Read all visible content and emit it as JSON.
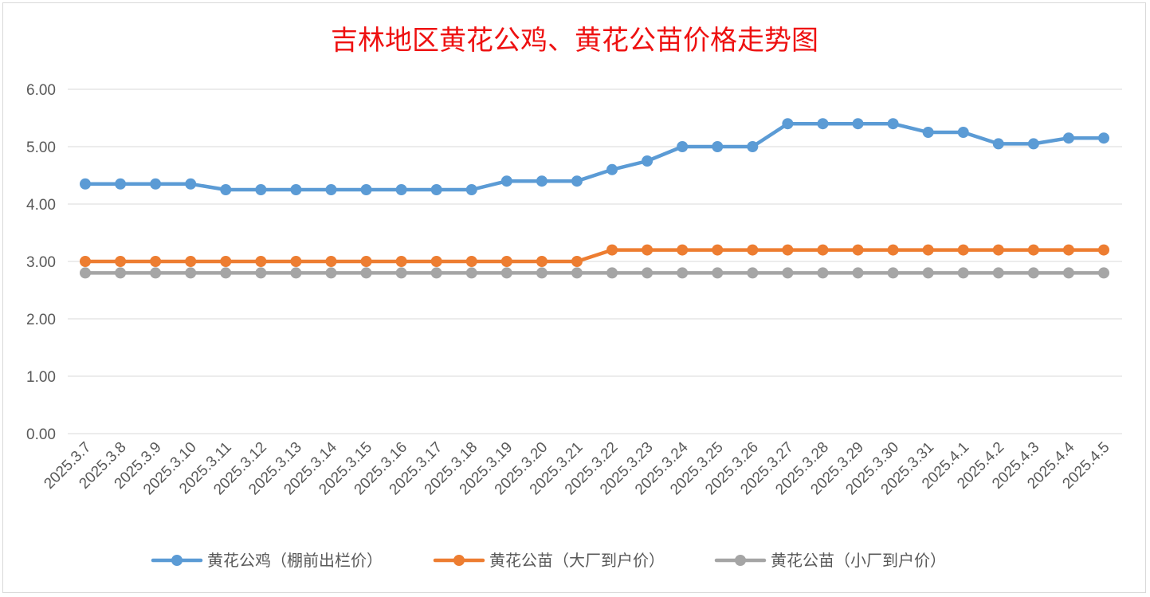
{
  "chart_data": {
    "type": "line",
    "title": "吉林地区黄花公鸡、黄花公苗价格走势图",
    "xlabel": "",
    "ylabel": "",
    "ylim": [
      0,
      6
    ],
    "yticks": [
      "0.00",
      "1.00",
      "2.00",
      "3.00",
      "4.00",
      "5.00",
      "6.00"
    ],
    "grid": true,
    "legend_position": "bottom",
    "categories": [
      "2025.3.7",
      "2025.3.8",
      "2025.3.9",
      "2025.3.10",
      "2025.3.11",
      "2025.3.12",
      "2025.3.13",
      "2025.3.14",
      "2025.3.15",
      "2025.3.16",
      "2025.3.17",
      "2025.3.18",
      "2025.3.19",
      "2025.3.20",
      "2025.3.21",
      "2025.3.22",
      "2025.3.23",
      "2025.3.24",
      "2025.3.25",
      "2025.3.26",
      "2025.3.27",
      "2025.3.28",
      "2025.3.29",
      "2025.3.30",
      "2025.3.31",
      "2025.4.1",
      "2025.4.2",
      "2025.4.3",
      "2025.4.4",
      "2025.4.5"
    ],
    "series": [
      {
        "name": "黄花公鸡（棚前出栏价）",
        "color": "#5b9bd5",
        "values": [
          4.35,
          4.35,
          4.35,
          4.35,
          4.25,
          4.25,
          4.25,
          4.25,
          4.25,
          4.25,
          4.25,
          4.25,
          4.4,
          4.4,
          4.4,
          4.6,
          4.75,
          5.0,
          5.0,
          5.0,
          5.4,
          5.4,
          5.4,
          5.4,
          5.25,
          5.25,
          5.05,
          5.05,
          5.15,
          5.15
        ]
      },
      {
        "name": "黄花公苗（大厂到户价）",
        "color": "#ed7d31",
        "values": [
          3.0,
          3.0,
          3.0,
          3.0,
          3.0,
          3.0,
          3.0,
          3.0,
          3.0,
          3.0,
          3.0,
          3.0,
          3.0,
          3.0,
          3.0,
          3.2,
          3.2,
          3.2,
          3.2,
          3.2,
          3.2,
          3.2,
          3.2,
          3.2,
          3.2,
          3.2,
          3.2,
          3.2,
          3.2,
          3.2
        ]
      },
      {
        "name": "黄花公苗（小厂到户价）",
        "color": "#a5a5a5",
        "values": [
          2.8,
          2.8,
          2.8,
          2.8,
          2.8,
          2.8,
          2.8,
          2.8,
          2.8,
          2.8,
          2.8,
          2.8,
          2.8,
          2.8,
          2.8,
          2.8,
          2.8,
          2.8,
          2.8,
          2.8,
          2.8,
          2.8,
          2.8,
          2.8,
          2.8,
          2.8,
          2.8,
          2.8,
          2.8,
          2.8
        ]
      }
    ]
  }
}
